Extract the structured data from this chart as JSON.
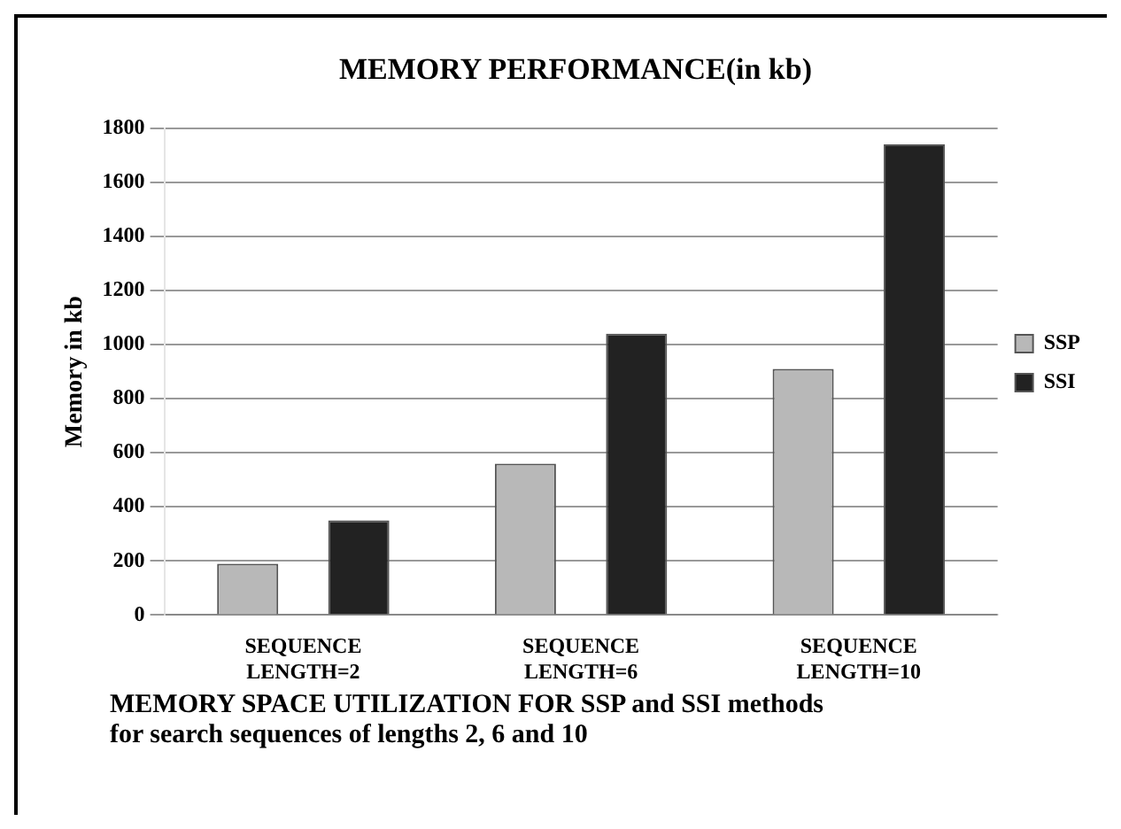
{
  "chart_data": {
    "type": "bar",
    "title": "MEMORY PERFORMANCE(in kb)",
    "ylabel": "Memory in kb",
    "categories": [
      "SEQUENCE LENGTH=2",
      "SEQUENCE LENGTH=6",
      "SEQUENCE LENGTH=10"
    ],
    "series": [
      {
        "name": "SSP",
        "color": "#b8b8b8",
        "values": [
          190,
          560,
          910
        ]
      },
      {
        "name": "SSI",
        "color": "#222222",
        "values": [
          350,
          1040,
          1740
        ]
      }
    ],
    "ylim": [
      0,
      1800
    ],
    "yticks": [
      0,
      200,
      400,
      600,
      800,
      1000,
      1200,
      1400,
      1600,
      1800
    ],
    "grid": "y",
    "legend": "right",
    "annotations": [
      "MEMORY SPACE UTILIZATION FOR SSP and SSI methods for search sequences of lengths 2, 6 and 10"
    ]
  }
}
